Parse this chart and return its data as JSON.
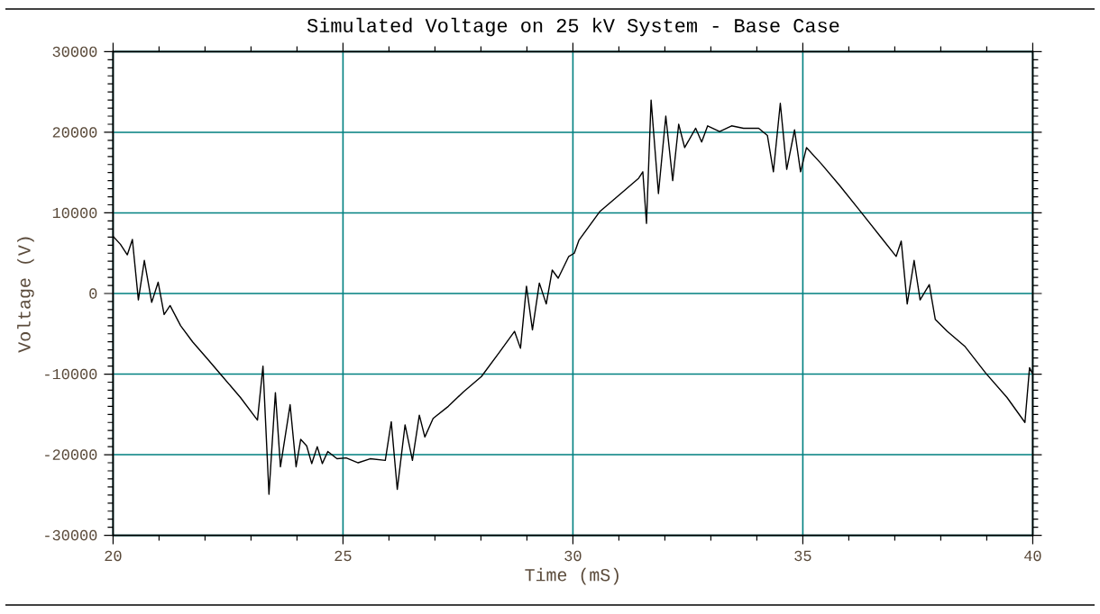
{
  "chart_data": {
    "type": "line",
    "title": "Simulated Voltage on 25 kV System - Base Case",
    "xlabel": "Time (mS)",
    "ylabel": "Voltage (V)",
    "xlim": [
      20,
      40
    ],
    "xticks": [
      20,
      25,
      30,
      35,
      40
    ],
    "ylim": [
      -30000,
      30000
    ],
    "yticks": [
      -30000,
      -20000,
      -10000,
      0,
      10000,
      20000,
      30000
    ],
    "grid": true,
    "marker": "none",
    "line_style": "solid",
    "series": [
      {
        "color": "#000000",
        "x": [
          20.0,
          20.16,
          20.31,
          20.42,
          20.55,
          20.68,
          20.84,
          20.98,
          21.11,
          21.24,
          21.47,
          21.73,
          22.05,
          22.38,
          22.77,
          23.14,
          23.26,
          23.39,
          23.53,
          23.64,
          23.85,
          23.98,
          24.08,
          24.21,
          24.32,
          24.44,
          24.55,
          24.67,
          24.87,
          25.07,
          25.33,
          25.59,
          25.92,
          26.05,
          26.18,
          26.35,
          26.51,
          26.66,
          26.78,
          26.96,
          27.29,
          27.62,
          28.01,
          28.4,
          28.73,
          28.86,
          28.99,
          29.12,
          29.27,
          29.42,
          29.55,
          29.68,
          29.91,
          30.03,
          30.13,
          30.59,
          30.98,
          31.43,
          31.52,
          31.6,
          31.7,
          31.86,
          32.02,
          32.17,
          32.3,
          32.43,
          32.67,
          32.8,
          32.93,
          33.19,
          33.45,
          33.71,
          34.04,
          34.23,
          34.36,
          34.51,
          34.65,
          34.82,
          34.95,
          35.08,
          35.4,
          35.8,
          36.25,
          36.71,
          37.03,
          37.14,
          37.27,
          37.42,
          37.55,
          37.75,
          37.88,
          38.14,
          38.53,
          38.98,
          39.44,
          39.83,
          39.93,
          39.99
        ],
        "values": [
          7100,
          6100,
          4800,
          6700,
          -800,
          4100,
          -1100,
          1400,
          -2600,
          -1500,
          -4000,
          -6000,
          -8100,
          -10300,
          -12900,
          -15700,
          -9000,
          -24900,
          -12300,
          -21500,
          -13800,
          -21500,
          -18100,
          -18900,
          -21100,
          -19000,
          -21100,
          -19600,
          -20500,
          -20400,
          -21000,
          -20500,
          -20700,
          -15900,
          -24300,
          -16300,
          -20700,
          -15100,
          -17800,
          -15500,
          -14000,
          -12200,
          -10300,
          -7300,
          -4700,
          -6800,
          900,
          -4500,
          1300,
          -1300,
          2900,
          1900,
          4600,
          5000,
          6600,
          10200,
          12100,
          14300,
          15100,
          8700,
          24000,
          12400,
          22000,
          14000,
          21000,
          18100,
          20500,
          18800,
          20800,
          20100,
          20800,
          20500,
          20500,
          19600,
          15100,
          23600,
          15400,
          20300,
          15100,
          18100,
          16100,
          13400,
          10200,
          6900,
          4600,
          6500,
          -1300,
          4100,
          -800,
          1100,
          -3200,
          -4700,
          -6600,
          -9900,
          -12900,
          -16000,
          -9200,
          -9900
        ]
      }
    ]
  }
}
